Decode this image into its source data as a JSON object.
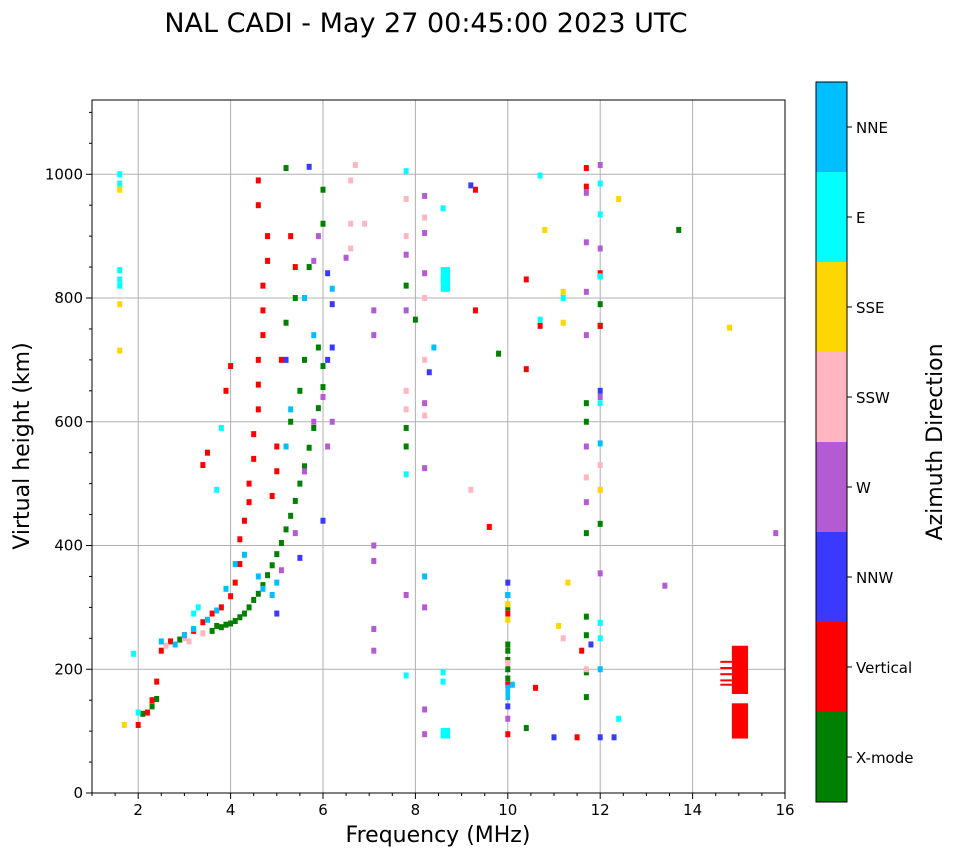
{
  "chart_data": {
    "type": "scatter",
    "title": "NAL CADI - May 27 00:45:00 2023 UTC",
    "xlabel": "Frequency (MHz)",
    "ylabel": "Virtual height (km)",
    "xlim": [
      1,
      16
    ],
    "ylim": [
      0,
      1120
    ],
    "x_ticks": [
      2,
      4,
      6,
      8,
      10,
      12,
      14,
      16
    ],
    "y_ticks": [
      0,
      200,
      400,
      600,
      800,
      1000
    ],
    "grid": true,
    "colorbar": {
      "label": "Azimuth Direction",
      "categories": [
        "X-mode",
        "Vertical",
        "NNW",
        "W",
        "SSW",
        "SSE",
        "E",
        "NNE"
      ],
      "colors": [
        "#008000",
        "#ff0000",
        "#3a3aff",
        "#b45ad2",
        "#ffb6c1",
        "#ffd700",
        "#00ffff",
        "#00bfff"
      ]
    },
    "series": [
      {
        "name": "X-mode",
        "points": [
          [
            2.1,
            128
          ],
          [
            2.3,
            140
          ],
          [
            2.4,
            152
          ],
          [
            2.9,
            248
          ],
          [
            3.6,
            262
          ],
          [
            3.7,
            270
          ],
          [
            3.8,
            268
          ],
          [
            3.9,
            272
          ],
          [
            4.0,
            274
          ],
          [
            4.1,
            278
          ],
          [
            4.2,
            284
          ],
          [
            4.3,
            290
          ],
          [
            4.4,
            300
          ],
          [
            4.5,
            312
          ],
          [
            4.6,
            322
          ],
          [
            4.7,
            336
          ],
          [
            4.8,
            352
          ],
          [
            4.9,
            368
          ],
          [
            5.0,
            386
          ],
          [
            5.1,
            404
          ],
          [
            5.2,
            426
          ],
          [
            5.3,
            448
          ],
          [
            5.4,
            472
          ],
          [
            5.5,
            500
          ],
          [
            5.6,
            528
          ],
          [
            5.7,
            558
          ],
          [
            5.8,
            590
          ],
          [
            5.9,
            622
          ],
          [
            6.0,
            656
          ],
          [
            6.0,
            690
          ],
          [
            5.2,
            760
          ],
          [
            5.4,
            800
          ],
          [
            5.7,
            850
          ],
          [
            6.0,
            920
          ],
          [
            5.2,
            1010
          ],
          [
            6.0,
            975
          ],
          [
            5.6,
            700
          ],
          [
            5.5,
            650
          ],
          [
            5.3,
            600
          ],
          [
            5.9,
            720
          ],
          [
            7.8,
            590
          ],
          [
            7.8,
            560
          ],
          [
            7.8,
            820
          ],
          [
            8.0,
            765
          ],
          [
            9.8,
            710
          ],
          [
            10.0,
            240
          ],
          [
            10.0,
            230
          ],
          [
            10.0,
            215
          ],
          [
            10.0,
            200
          ],
          [
            10.0,
            185
          ],
          [
            10.0,
            320
          ],
          [
            10.0,
            300
          ],
          [
            10.4,
            105
          ],
          [
            11.7,
            630
          ],
          [
            11.7,
            600
          ],
          [
            11.7,
            420
          ],
          [
            11.7,
            285
          ],
          [
            11.7,
            255
          ],
          [
            11.7,
            195
          ],
          [
            11.7,
            155
          ],
          [
            12.0,
            835
          ],
          [
            12.0,
            790
          ],
          [
            12.0,
            755
          ],
          [
            12.0,
            435
          ],
          [
            13.7,
            910
          ]
        ]
      },
      {
        "name": "Vertical",
        "points": [
          [
            2.0,
            110
          ],
          [
            2.2,
            130
          ],
          [
            2.3,
            150
          ],
          [
            2.4,
            180
          ],
          [
            2.5,
            230
          ],
          [
            2.7,
            245
          ],
          [
            3.0,
            255
          ],
          [
            3.2,
            262
          ],
          [
            3.4,
            276
          ],
          [
            3.6,
            290
          ],
          [
            3.8,
            300
          ],
          [
            4.0,
            318
          ],
          [
            4.1,
            340
          ],
          [
            4.2,
            370
          ],
          [
            4.2,
            410
          ],
          [
            4.3,
            440
          ],
          [
            4.4,
            470
          ],
          [
            4.4,
            500
          ],
          [
            4.5,
            540
          ],
          [
            4.5,
            580
          ],
          [
            4.6,
            620
          ],
          [
            4.6,
            660
          ],
          [
            4.6,
            700
          ],
          [
            4.7,
            740
          ],
          [
            4.7,
            780
          ],
          [
            4.7,
            820
          ],
          [
            4.8,
            860
          ],
          [
            4.8,
            900
          ],
          [
            4.6,
            950
          ],
          [
            4.6,
            990
          ],
          [
            4.0,
            690
          ],
          [
            3.9,
            650
          ],
          [
            3.5,
            550
          ],
          [
            3.4,
            530
          ],
          [
            5.0,
            560
          ],
          [
            5.0,
            520
          ],
          [
            4.9,
            480
          ],
          [
            5.1,
            700
          ],
          [
            5.3,
            900
          ],
          [
            5.4,
            850
          ],
          [
            9.3,
            975
          ],
          [
            9.3,
            780
          ],
          [
            9.6,
            430
          ],
          [
            10.4,
            830
          ],
          [
            10.4,
            685
          ],
          [
            10.6,
            170
          ],
          [
            10.0,
            95
          ],
          [
            10.0,
            175
          ],
          [
            10.0,
            290
          ],
          [
            10.7,
            755
          ],
          [
            11.5,
            90
          ],
          [
            11.6,
            230
          ],
          [
            11.7,
            1010
          ],
          [
            11.7,
            980
          ],
          [
            12.0,
            840
          ],
          [
            12.0,
            755
          ]
        ]
      },
      {
        "name": "NNW",
        "points": [
          [
            5.7,
            1012
          ],
          [
            6.0,
            440
          ],
          [
            5.5,
            380
          ],
          [
            5.0,
            290
          ],
          [
            5.2,
            700
          ],
          [
            6.1,
            700
          ],
          [
            6.2,
            720
          ],
          [
            6.2,
            790
          ],
          [
            6.1,
            840
          ],
          [
            5.6,
            520
          ],
          [
            8.3,
            680
          ],
          [
            9.2,
            982
          ],
          [
            10.0,
            140
          ],
          [
            10.0,
            340
          ],
          [
            11.0,
            90
          ],
          [
            11.8,
            240
          ],
          [
            12.0,
            90
          ],
          [
            12.3,
            90
          ],
          [
            12.0,
            650
          ]
        ]
      },
      {
        "name": "W",
        "points": [
          [
            5.1,
            360
          ],
          [
            5.4,
            420
          ],
          [
            5.6,
            520
          ],
          [
            5.8,
            600
          ],
          [
            6.0,
            640
          ],
          [
            6.1,
            560
          ],
          [
            6.2,
            600
          ],
          [
            5.8,
            860
          ],
          [
            5.9,
            900
          ],
          [
            6.5,
            865
          ],
          [
            7.1,
            780
          ],
          [
            7.1,
            740
          ],
          [
            7.1,
            400
          ],
          [
            7.1,
            375
          ],
          [
            7.1,
            265
          ],
          [
            7.1,
            230
          ],
          [
            7.8,
            870
          ],
          [
            7.8,
            780
          ],
          [
            7.8,
            320
          ],
          [
            8.2,
            965
          ],
          [
            8.2,
            905
          ],
          [
            8.2,
            840
          ],
          [
            8.2,
            630
          ],
          [
            8.2,
            525
          ],
          [
            8.2,
            300
          ],
          [
            8.2,
            135
          ],
          [
            8.2,
            95
          ],
          [
            10.0,
            120
          ],
          [
            11.7,
            970
          ],
          [
            11.7,
            890
          ],
          [
            11.7,
            810
          ],
          [
            11.7,
            740
          ],
          [
            11.7,
            560
          ],
          [
            11.7,
            470
          ],
          [
            12.0,
            1015
          ],
          [
            12.0,
            880
          ],
          [
            12.0,
            640
          ],
          [
            12.0,
            355
          ],
          [
            13.4,
            335
          ],
          [
            15.8,
            420
          ]
        ]
      },
      {
        "name": "SSW",
        "points": [
          [
            2.6,
            238
          ],
          [
            3.1,
            245
          ],
          [
            3.4,
            258
          ],
          [
            3.0,
            250
          ],
          [
            6.7,
            1015
          ],
          [
            6.6,
            990
          ],
          [
            6.6,
            920
          ],
          [
            6.6,
            880
          ],
          [
            6.9,
            920
          ],
          [
            7.8,
            960
          ],
          [
            7.8,
            900
          ],
          [
            7.8,
            650
          ],
          [
            7.8,
            620
          ],
          [
            8.2,
            930
          ],
          [
            8.2,
            800
          ],
          [
            8.2,
            700
          ],
          [
            8.2,
            610
          ],
          [
            9.2,
            490
          ],
          [
            10.0,
            210
          ],
          [
            11.2,
            250
          ],
          [
            11.7,
            200
          ],
          [
            11.7,
            510
          ],
          [
            12.0,
            530
          ],
          [
            12.0,
            490
          ]
        ]
      },
      {
        "name": "SSE",
        "points": [
          [
            1.6,
            790
          ],
          [
            1.6,
            715
          ],
          [
            1.6,
            975
          ],
          [
            1.7,
            110
          ],
          [
            10.0,
            305
          ],
          [
            10.0,
            280
          ],
          [
            10.8,
            910
          ],
          [
            11.2,
            810
          ],
          [
            11.2,
            760
          ],
          [
            11.3,
            340
          ],
          [
            11.1,
            270
          ],
          [
            12.0,
            490
          ],
          [
            12.4,
            960
          ],
          [
            14.8,
            752
          ]
        ]
      },
      {
        "name": "E",
        "points": [
          [
            1.6,
            1000
          ],
          [
            1.6,
            985
          ],
          [
            1.6,
            845
          ],
          [
            1.6,
            830
          ],
          [
            1.6,
            820
          ],
          [
            1.9,
            225
          ],
          [
            2.0,
            130
          ],
          [
            3.8,
            590
          ],
          [
            3.7,
            490
          ],
          [
            3.3,
            300
          ],
          [
            3.2,
            290
          ],
          [
            7.8,
            1005
          ],
          [
            7.8,
            515
          ],
          [
            7.8,
            190
          ],
          [
            8.6,
            945
          ],
          [
            8.6,
            830
          ],
          [
            8.6,
            195
          ],
          [
            8.6,
            180
          ],
          [
            8.6,
            95
          ],
          [
            10.7,
            998
          ],
          [
            10.7,
            765
          ],
          [
            11.2,
            800
          ],
          [
            12.0,
            985
          ],
          [
            12.0,
            935
          ],
          [
            12.0,
            835
          ],
          [
            12.0,
            630
          ],
          [
            12.0,
            275
          ],
          [
            12.0,
            250
          ],
          [
            12.4,
            120
          ]
        ]
      },
      {
        "name": "NNE",
        "points": [
          [
            2.5,
            245
          ],
          [
            2.8,
            240
          ],
          [
            3.0,
            255
          ],
          [
            3.2,
            265
          ],
          [
            3.5,
            280
          ],
          [
            3.7,
            295
          ],
          [
            3.9,
            330
          ],
          [
            4.1,
            370
          ],
          [
            4.3,
            385
          ],
          [
            4.6,
            350
          ],
          [
            4.7,
            330
          ],
          [
            4.9,
            320
          ],
          [
            5.0,
            340
          ],
          [
            5.2,
            560
          ],
          [
            5.3,
            620
          ],
          [
            5.6,
            800
          ],
          [
            5.8,
            740
          ],
          [
            6.2,
            815
          ],
          [
            8.2,
            350
          ],
          [
            8.4,
            720
          ],
          [
            10.0,
            320
          ],
          [
            10.1,
            175
          ],
          [
            12.0,
            565
          ],
          [
            12.0,
            200
          ]
        ]
      }
    ],
    "bars": [
      {
        "name": "Vertical",
        "x0": 14.85,
        "x1": 15.2,
        "y0": 160,
        "y1": 238
      },
      {
        "name": "Vertical",
        "x0": 14.85,
        "x1": 15.2,
        "y0": 88,
        "y1": 145
      },
      {
        "name": "E",
        "x0": 8.55,
        "x1": 8.75,
        "y0": 810,
        "y1": 850
      },
      {
        "name": "E",
        "x0": 8.55,
        "x1": 8.75,
        "y0": 88,
        "y1": 105
      },
      {
        "name": "NNE",
        "x0": 9.95,
        "x1": 10.05,
        "y0": 150,
        "y1": 175
      }
    ],
    "hlines": [
      {
        "name": "Vertical",
        "x0": 14.6,
        "x1": 14.85,
        "y": 212
      },
      {
        "name": "Vertical",
        "x0": 14.6,
        "x1": 14.85,
        "y": 202
      },
      {
        "name": "Vertical",
        "x0": 14.6,
        "x1": 14.85,
        "y": 192
      },
      {
        "name": "Vertical",
        "x0": 14.6,
        "x1": 14.85,
        "y": 182
      },
      {
        "name": "Vertical",
        "x0": 14.6,
        "x1": 14.85,
        "y": 175
      }
    ]
  }
}
